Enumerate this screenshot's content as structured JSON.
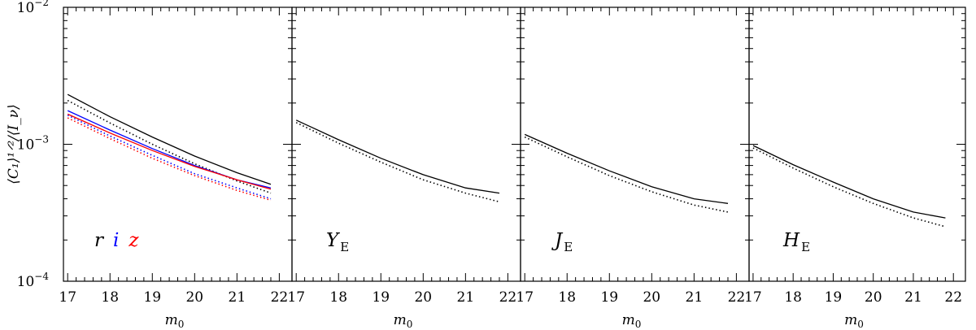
{
  "chart_data": {
    "type": "line",
    "ylabel": "⟨C₁⟩¹ᐟ²/⟨I_ν⟩",
    "yscale": "log",
    "ylim": [
      0.0001,
      0.01
    ],
    "xlim": [
      16.9,
      22.3
    ],
    "ytick_labels": [
      {
        "value": 0.0001,
        "base": "10",
        "exp": "−4"
      },
      {
        "value": 0.001,
        "base": "10",
        "exp": "−3"
      },
      {
        "value": 0.01,
        "base": "10",
        "exp": "−2"
      }
    ],
    "panels": [
      {
        "id": "riz",
        "xlabel": "m",
        "xlabel_sub": "0",
        "xticks": [
          17,
          18,
          19,
          20,
          21,
          22
        ],
        "label_parts": [
          {
            "text": "r",
            "sub": "",
            "color": "#000000"
          },
          {
            "text": "i",
            "sub": "",
            "color": "#0000ff"
          },
          {
            "text": "z",
            "sub": "",
            "color": "#ff0000"
          }
        ],
        "series": [
          {
            "color": "#000000",
            "style": "solid",
            "x": [
              17,
              18,
              19,
              20,
              21,
              21.8
            ],
            "y": [
              0.00231,
              0.00159,
              0.00113,
              0.00082,
              0.00062,
              0.00051
            ]
          },
          {
            "color": "#000000",
            "style": "dotted",
            "x": [
              17,
              18,
              19,
              20,
              21,
              21.8
            ],
            "y": [
              0.00209,
              0.00143,
              0.001,
              0.00072,
              0.00054,
              0.00044
            ]
          },
          {
            "color": "#0000ff",
            "style": "solid",
            "x": [
              17,
              18,
              19,
              20,
              21,
              21.8
            ],
            "y": [
              0.00176,
              0.00127,
              0.00093,
              0.0007,
              0.00055,
              0.00048
            ]
          },
          {
            "color": "#0000ff",
            "style": "dotted",
            "x": [
              17,
              18,
              19,
              20,
              21,
              21.8
            ],
            "y": [
              0.00163,
              0.00115,
              0.00083,
              0.00061,
              0.00048,
              0.0004
            ]
          },
          {
            "color": "#ff0000",
            "style": "solid",
            "x": [
              17,
              18,
              19,
              20,
              21,
              21.8
            ],
            "y": [
              0.00166,
              0.00121,
              0.0009,
              0.00069,
              0.00055,
              0.00047
            ]
          },
          {
            "color": "#ff0000",
            "style": "dotted",
            "x": [
              17,
              18,
              19,
              20,
              21,
              21.8
            ],
            "y": [
              0.00156,
              0.0011,
              0.00079,
              0.00059,
              0.00046,
              0.00039
            ]
          }
        ]
      },
      {
        "id": "YE",
        "xlabel": "m",
        "xlabel_sub": "0",
        "xticks": [
          17,
          18,
          19,
          20,
          21,
          22
        ],
        "label_parts": [
          {
            "text": "Y",
            "sub": "E",
            "color": "#000000"
          }
        ],
        "series": [
          {
            "color": "#000000",
            "style": "solid",
            "x": [
              17,
              18,
              19,
              20,
              21,
              21.8
            ],
            "y": [
              0.0015,
              0.00108,
              0.00079,
              0.0006,
              0.00048,
              0.00044
            ]
          },
          {
            "color": "#000000",
            "style": "dotted",
            "x": [
              17,
              18,
              19,
              20,
              21,
              21.8
            ],
            "y": [
              0.00144,
              0.00102,
              0.00074,
              0.00055,
              0.00044,
              0.00038
            ]
          }
        ]
      },
      {
        "id": "JE",
        "xlabel": "m",
        "xlabel_sub": "0",
        "xticks": [
          17,
          18,
          19,
          20,
          21,
          22
        ],
        "label_parts": [
          {
            "text": "J",
            "sub": "E",
            "color": "#000000"
          }
        ],
        "series": [
          {
            "color": "#000000",
            "style": "solid",
            "x": [
              17,
              18,
              19,
              20,
              21,
              21.8
            ],
            "y": [
              0.00118,
              0.00086,
              0.00064,
              0.00049,
              0.0004,
              0.00037
            ]
          },
          {
            "color": "#000000",
            "style": "dotted",
            "x": [
              17,
              18,
              19,
              20,
              21,
              21.8
            ],
            "y": [
              0.00113,
              0.00081,
              0.00059,
              0.00045,
              0.00036,
              0.00032
            ]
          }
        ]
      },
      {
        "id": "HE",
        "xlabel": "m",
        "xlabel_sub": "0",
        "xticks": [
          17,
          18,
          19,
          20,
          21,
          22
        ],
        "label_parts": [
          {
            "text": "H",
            "sub": "E",
            "color": "#000000"
          }
        ],
        "series": [
          {
            "color": "#000000",
            "style": "solid",
            "x": [
              17,
              18,
              19,
              20,
              21,
              21.8
            ],
            "y": [
              0.00098,
              0.00071,
              0.00053,
              0.0004,
              0.00032,
              0.00029
            ]
          },
          {
            "color": "#000000",
            "style": "dotted",
            "x": [
              17,
              18,
              19,
              20,
              21,
              21.8
            ],
            "y": [
              0.00094,
              0.00067,
              0.00049,
              0.00037,
              0.00029,
              0.00025
            ]
          }
        ]
      }
    ]
  }
}
